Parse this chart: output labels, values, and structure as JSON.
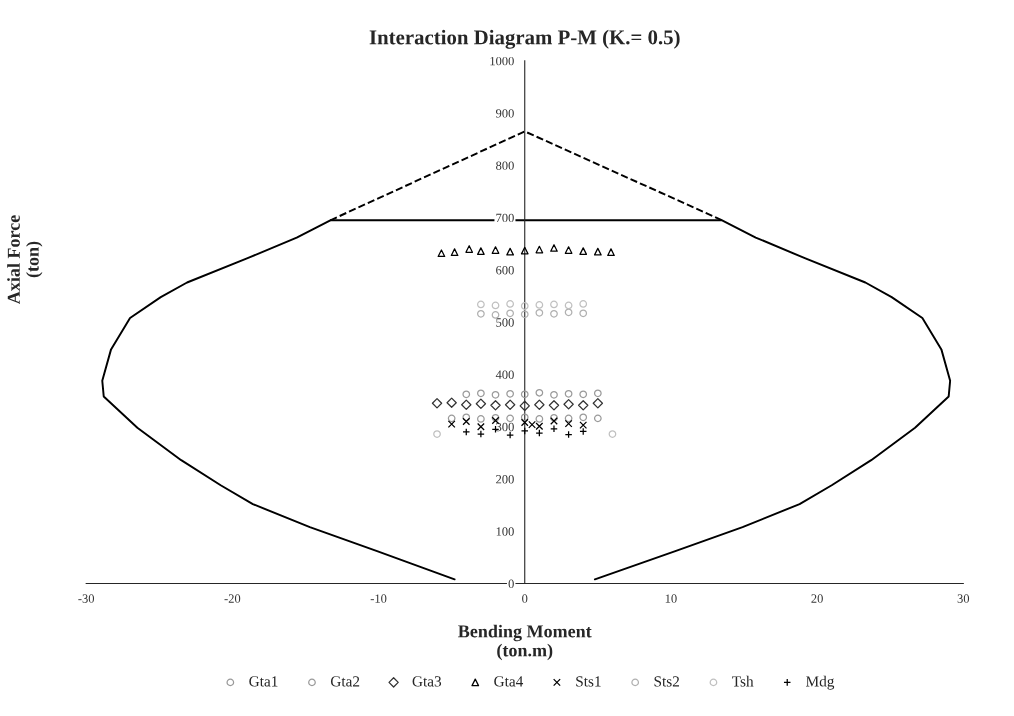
{
  "chart_data": {
    "type": "scatter",
    "title": "Interaction Diagram P-M (K.= 0.5)",
    "xlabel": "Bending Moment\n(ton.m)",
    "ylabel": "Axial Force\n(ton)",
    "xlim": [
      -30,
      30
    ],
    "xticks": [
      -30,
      -20,
      -10,
      0,
      10,
      20,
      30
    ],
    "ylim": [
      0,
      1000
    ],
    "yticks": [
      0,
      100,
      200,
      300,
      400,
      500,
      600,
      700,
      800,
      900,
      1000
    ],
    "grid": false,
    "legend": "bottom",
    "series": [
      {
        "type": "line",
        "color": "#000000",
        "line_style": "solid",
        "marker": "none",
        "x": [
          -4.8,
          -10.1,
          -14.7,
          -18.6,
          -20.8,
          -23.5,
          -26.5,
          -28.8,
          -28.9,
          -28.3,
          -27.0,
          -24.9,
          -23.1,
          -19.0,
          -15.6,
          -13.3,
          13.5,
          15.8,
          19.2,
          23.3,
          25.1,
          27.2,
          28.5,
          29.1,
          29.0,
          26.7,
          23.7,
          21.0,
          18.8,
          14.9,
          10.3,
          4.8
        ],
        "values": [
          8,
          62,
          108,
          152,
          188,
          236,
          298,
          358,
          388,
          448,
          508,
          548,
          576,
          622,
          662,
          695,
          695,
          662,
          622,
          576,
          548,
          508,
          448,
          388,
          358,
          298,
          236,
          188,
          152,
          108,
          62,
          8
        ]
      },
      {
        "type": "line",
        "color": "#000000",
        "line_style": "dashed",
        "marker": "none",
        "x": [
          -13.3,
          0,
          13.5
        ],
        "values": [
          695,
          865,
          695
        ]
      },
      {
        "name": "Gta1",
        "color": "#9a9a9a",
        "marker": "circle",
        "x": [
          -4,
          -3,
          -2,
          -1,
          0,
          1,
          2,
          3,
          4,
          5
        ],
        "values": [
          362,
          364,
          361,
          363,
          362,
          365,
          361,
          363,
          362,
          364
        ]
      },
      {
        "name": "Gta2",
        "color": "#9a9a9a",
        "marker": "circle",
        "x": [
          -5,
          -4,
          -3,
          -2,
          -1,
          0,
          1,
          2,
          3,
          4,
          5
        ],
        "values": [
          316,
          318,
          315,
          317,
          316,
          318,
          315,
          317,
          316,
          318,
          316
        ]
      },
      {
        "name": "Gta3",
        "color": "#333333",
        "marker": "diamond",
        "x": [
          -6,
          -5,
          -4,
          -3,
          -2,
          -1,
          0,
          1,
          2,
          3,
          4,
          5
        ],
        "values": [
          345,
          346,
          342,
          344,
          341,
          342,
          340,
          342,
          341,
          343,
          341,
          345
        ]
      },
      {
        "name": "Gta4",
        "color": "#000000",
        "marker": "triangle",
        "x": [
          -5.7,
          -4.8,
          -3.8,
          -3,
          -2,
          -1,
          0,
          1,
          2,
          3,
          4,
          5,
          5.9
        ],
        "values": [
          632,
          634,
          640,
          636,
          638,
          635,
          637,
          639,
          642,
          638,
          636,
          635,
          634
        ]
      },
      {
        "name": "Sts1",
        "color": "#000000",
        "marker": "cross",
        "x": [
          -5,
          -4,
          -3,
          -2,
          0.5,
          0,
          1,
          2,
          3,
          4
        ],
        "values": [
          305,
          310,
          300,
          312,
          304,
          308,
          301,
          311,
          306,
          303
        ]
      },
      {
        "name": "Sts2",
        "color": "#b0b0b0",
        "marker": "circle",
        "x": [
          -3,
          -2,
          -1,
          0,
          1,
          2,
          3,
          4
        ],
        "values": [
          516,
          514,
          517,
          515,
          518,
          516,
          519,
          517
        ]
      },
      {
        "name": "Tsh",
        "color": "#c0c0c0",
        "marker": "circle",
        "x": [
          -3,
          -2,
          -1,
          0,
          1,
          2,
          3,
          4,
          -6,
          6
        ],
        "values": [
          534,
          532,
          535,
          531,
          533,
          534,
          532,
          535,
          286,
          286
        ]
      },
      {
        "name": "Mdg",
        "color": "#000000",
        "marker": "plus",
        "x": [
          -4,
          -3,
          -2,
          -1,
          0,
          1,
          2,
          3,
          4
        ],
        "values": [
          290,
          286,
          295,
          284,
          292,
          288,
          296,
          285,
          291
        ]
      }
    ]
  }
}
